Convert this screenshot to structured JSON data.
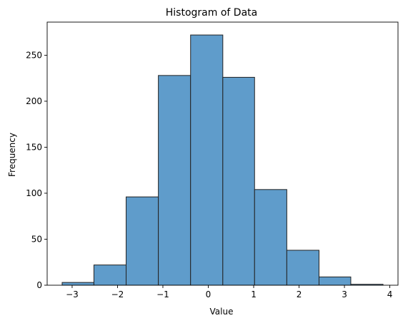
{
  "chart_data": {
    "type": "bar",
    "title": "Histogram of Data",
    "xlabel": "Value",
    "ylabel": "Frequency",
    "bins": [
      {
        "x0": -3.22,
        "x1": -2.52,
        "value": 3
      },
      {
        "x0": -2.52,
        "x1": -1.81,
        "value": 22
      },
      {
        "x0": -1.81,
        "x1": -1.1,
        "value": 96
      },
      {
        "x0": -1.1,
        "x1": -0.39,
        "value": 228
      },
      {
        "x0": -0.39,
        "x1": 0.32,
        "value": 272
      },
      {
        "x0": 0.32,
        "x1": 1.02,
        "value": 226
      },
      {
        "x0": 1.02,
        "x1": 1.73,
        "value": 104
      },
      {
        "x0": 1.73,
        "x1": 2.44,
        "value": 38
      },
      {
        "x0": 2.44,
        "x1": 3.14,
        "value": 9
      },
      {
        "x0": 3.14,
        "x1": 3.85,
        "value": 1
      }
    ],
    "xlim": [
      -3.55,
      4.18
    ],
    "ylim": [
      0,
      286
    ],
    "x_ticks": [
      -3,
      -2,
      -1,
      0,
      1,
      2,
      3,
      4
    ],
    "x_tick_labels": [
      "−3",
      "−2",
      "−1",
      "0",
      "1",
      "2",
      "3",
      "4"
    ],
    "y_ticks": [
      0,
      50,
      100,
      150,
      200,
      250
    ],
    "y_tick_labels": [
      "0",
      "50",
      "100",
      "150",
      "200",
      "250"
    ],
    "grid": false,
    "legend": "none",
    "bar_color": "#5f9ccb",
    "edge_color": "#222222"
  }
}
